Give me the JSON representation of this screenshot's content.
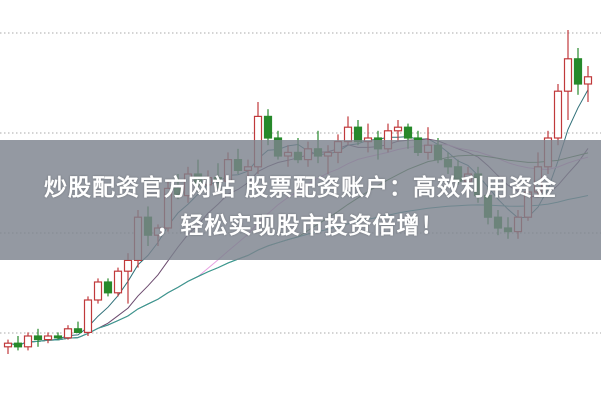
{
  "banner": {
    "line1": "炒股配资官方网站 股票配资账户：高效利用资金",
    "line2": "，轻松实现股市投资倍增！"
  },
  "colors": {
    "up": "#c0393b",
    "down": "#27892b",
    "banner": "#7d838e",
    "grid": "#aaaaaa",
    "ma": [
      "#2f6f78",
      "#6b4a6e",
      "#e7a0e0",
      "#3e7a3a",
      "#3a9a98"
    ]
  },
  "chart_data": {
    "type": "candlestick",
    "grid": true,
    "ylim": [
      0,
      100
    ],
    "moving_averages": [
      5,
      10,
      20,
      30,
      60
    ],
    "ohlc": [
      [
        12,
        14,
        10,
        13
      ],
      [
        13,
        15,
        11,
        12
      ],
      [
        12,
        16,
        11,
        15
      ],
      [
        15,
        17,
        12,
        14
      ],
      [
        14,
        16,
        13,
        15
      ],
      [
        15,
        16,
        14,
        14.5
      ],
      [
        14.5,
        18,
        14,
        17
      ],
      [
        17,
        19,
        16,
        16
      ],
      [
        16,
        26,
        15,
        25
      ],
      [
        25,
        31,
        24,
        30
      ],
      [
        30,
        31,
        26,
        27
      ],
      [
        27,
        34,
        26,
        33
      ],
      [
        33,
        38,
        24,
        36
      ],
      [
        36,
        50,
        34,
        48
      ],
      [
        48,
        51,
        40,
        43
      ],
      [
        43,
        46,
        40,
        45
      ],
      [
        45,
        58,
        44,
        56
      ],
      [
        56,
        60,
        53,
        54
      ],
      [
        54,
        62,
        52,
        60
      ],
      [
        60,
        64,
        55,
        57
      ],
      [
        57,
        61,
        54,
        59
      ],
      [
        59,
        63,
        56,
        58
      ],
      [
        58,
        66,
        57,
        64
      ],
      [
        64,
        67,
        60,
        61
      ],
      [
        61,
        64,
        58,
        62
      ],
      [
        62,
        80,
        60,
        76
      ],
      [
        76,
        78,
        68,
        70
      ],
      [
        70,
        72,
        64,
        65
      ],
      [
        65,
        68,
        62,
        66
      ],
      [
        66,
        70,
        63,
        64
      ],
      [
        64,
        69,
        62,
        67
      ],
      [
        67,
        72,
        63,
        65
      ],
      [
        65,
        68,
        60,
        66
      ],
      [
        66,
        71,
        63,
        69
      ],
      [
        69,
        76,
        68,
        73
      ],
      [
        73,
        75,
        68,
        69
      ],
      [
        69,
        74,
        66,
        70
      ],
      [
        70,
        72,
        64,
        67
      ],
      [
        67,
        74,
        66,
        72
      ],
      [
        72,
        75,
        69,
        73
      ],
      [
        73,
        74,
        67,
        70
      ],
      [
        70,
        72,
        65,
        66
      ],
      [
        66,
        73,
        64,
        68
      ],
      [
        68,
        70,
        63,
        64
      ],
      [
        64,
        66,
        60,
        62
      ],
      [
        62,
        64,
        57,
        58
      ],
      [
        58,
        62,
        55,
        60
      ],
      [
        60,
        62,
        52,
        54
      ],
      [
        54,
        56,
        46,
        48
      ],
      [
        48,
        50,
        43,
        45
      ],
      [
        45,
        48,
        42,
        44
      ],
      [
        44,
        50,
        42,
        48
      ],
      [
        48,
        56,
        47,
        55
      ],
      [
        55,
        66,
        54,
        62
      ],
      [
        62,
        72,
        60,
        70
      ],
      [
        70,
        85,
        68,
        83
      ],
      [
        83,
        100,
        75,
        92
      ],
      [
        92,
        95,
        82,
        85
      ],
      [
        85,
        90,
        80,
        87
      ]
    ]
  }
}
